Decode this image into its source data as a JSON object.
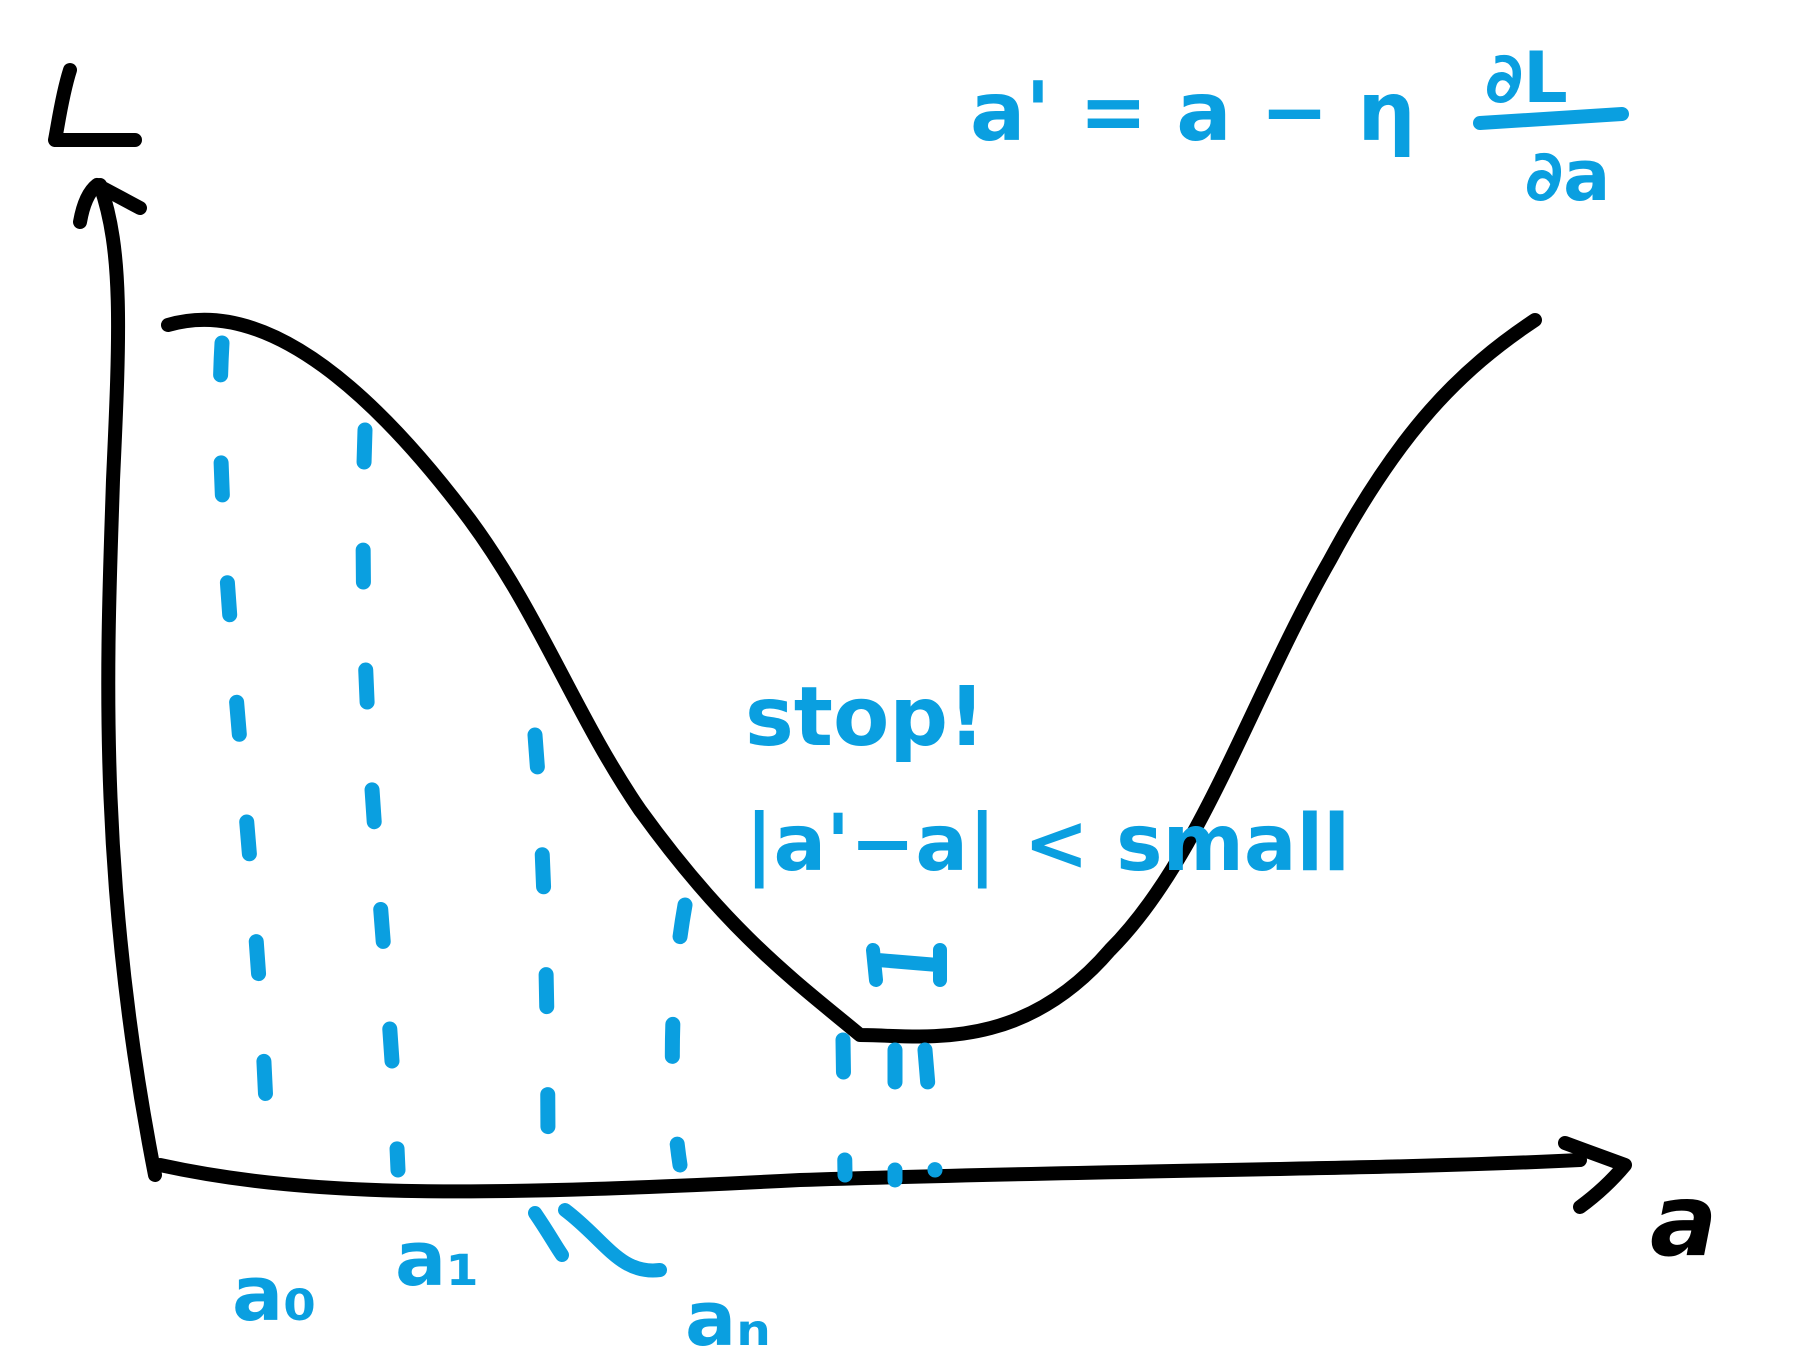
{
  "axes": {
    "y_label": "L",
    "x_label": "a"
  },
  "formula": {
    "lhs": "a' = a − η",
    "numerator": "∂L",
    "denominator": "∂a"
  },
  "stop_note": {
    "line1": "stop!",
    "line2": "|a'−a| < small"
  },
  "iterates": {
    "first": "a₀",
    "second": "a₁",
    "dots": "\\",
    "last": "aₙ"
  },
  "colors": {
    "ink": "#000000",
    "annotation": "#0a9fe0"
  }
}
